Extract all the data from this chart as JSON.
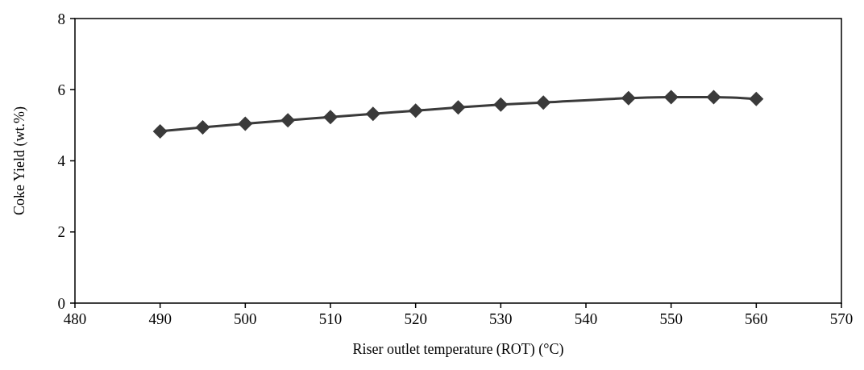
{
  "chart_data": {
    "type": "line",
    "xlabel": "Riser outlet temperature (ROT) (°C)",
    "ylabel": "Coke Yield (wt.%)",
    "x": [
      490,
      495,
      500,
      505,
      510,
      515,
      520,
      525,
      530,
      535,
      545,
      550,
      555,
      560
    ],
    "series": [
      {
        "color": "#3a3a3a",
        "values": [
          4.83,
          4.94,
          5.04,
          5.14,
          5.23,
          5.32,
          5.41,
          5.5,
          5.58,
          5.64,
          5.76,
          5.79,
          5.79,
          5.74
        ]
      }
    ],
    "xlim": [
      480,
      570
    ],
    "xticks": [
      480,
      490,
      500,
      510,
      520,
      530,
      540,
      550,
      560,
      570
    ],
    "ylim": [
      0,
      8
    ],
    "yticks": [
      0,
      2,
      4,
      6,
      8
    ],
    "grid": false,
    "marker": "diamond",
    "line_style": "solid"
  }
}
